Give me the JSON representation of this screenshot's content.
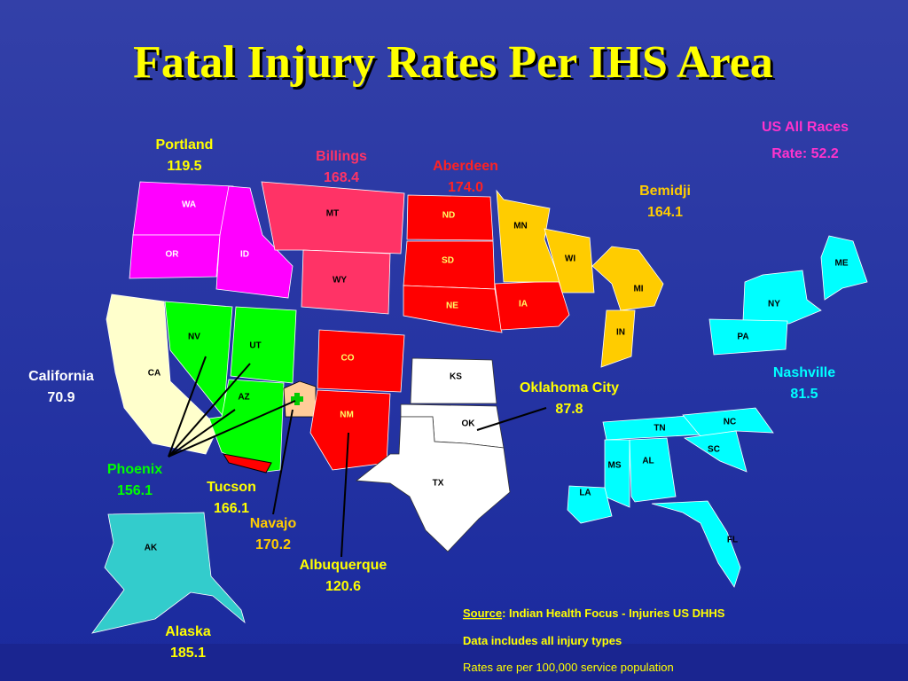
{
  "title": "Fatal Injury Rates Per IHS Area",
  "us_all_races": {
    "label": "US All Races",
    "rate": "Rate: 52.2"
  },
  "areas": [
    {
      "name": "Portland",
      "rate": "119.5",
      "color": "#ff00ff",
      "label_color": "#ffff00",
      "states": [
        "WA",
        "OR",
        "ID"
      ]
    },
    {
      "name": "Billings",
      "rate": "168.4",
      "color": "#ff3366",
      "label_color": "#ff3366",
      "states": [
        "MT",
        "WY"
      ]
    },
    {
      "name": "Aberdeen",
      "rate": "174.0",
      "color": "#ff0000",
      "label_color": "#ff2222",
      "states": [
        "ND",
        "SD",
        "NE",
        "IA"
      ]
    },
    {
      "name": "Bemidji",
      "rate": "164.1",
      "color": "#ffcc00",
      "label_color": "#ffcc00",
      "states": [
        "MN",
        "WI",
        "MI",
        "IN"
      ]
    },
    {
      "name": "California",
      "rate": "70.9",
      "color": "#ffffcc",
      "label_color": "#ffffff",
      "states": [
        "CA"
      ]
    },
    {
      "name": "Phoenix",
      "rate": "156.1",
      "color": "#00ff00",
      "label_color": "#00ff00",
      "states": [
        "NV",
        "UT",
        "AZ"
      ]
    },
    {
      "name": "Tucson",
      "rate": "166.1",
      "color": "#ff0000",
      "label_color": "#ffff00",
      "states": []
    },
    {
      "name": "Navajo",
      "rate": "170.2",
      "color": "#ffcc99",
      "label_color": "#ffcc00",
      "states": []
    },
    {
      "name": "Albuquerque",
      "rate": "120.6",
      "color": "#ff0000",
      "label_color": "#ffff00",
      "states": [
        "CO",
        "NM"
      ]
    },
    {
      "name": "Oklahoma City",
      "rate": "87.8",
      "color": "#ffffff",
      "label_color": "#ffff00",
      "states": [
        "KS",
        "OK",
        "TX"
      ]
    },
    {
      "name": "Nashville",
      "rate": "81.5",
      "color": "#00ffff",
      "label_color": "#00ffff",
      "states": [
        "ME",
        "NY",
        "PA",
        "TN",
        "NC",
        "SC",
        "MS",
        "AL",
        "LA",
        "FL"
      ]
    },
    {
      "name": "Alaska",
      "rate": "185.1",
      "color": "#33cccc",
      "label_color": "#ffff00",
      "states": [
        "AK"
      ]
    }
  ],
  "footer": {
    "source_label": "Source",
    "source_text": ": Indian Health Focus - Injuries US DHHS",
    "notes": [
      "Data includes all injury types",
      "Rates are per 100,000 service population"
    ]
  }
}
